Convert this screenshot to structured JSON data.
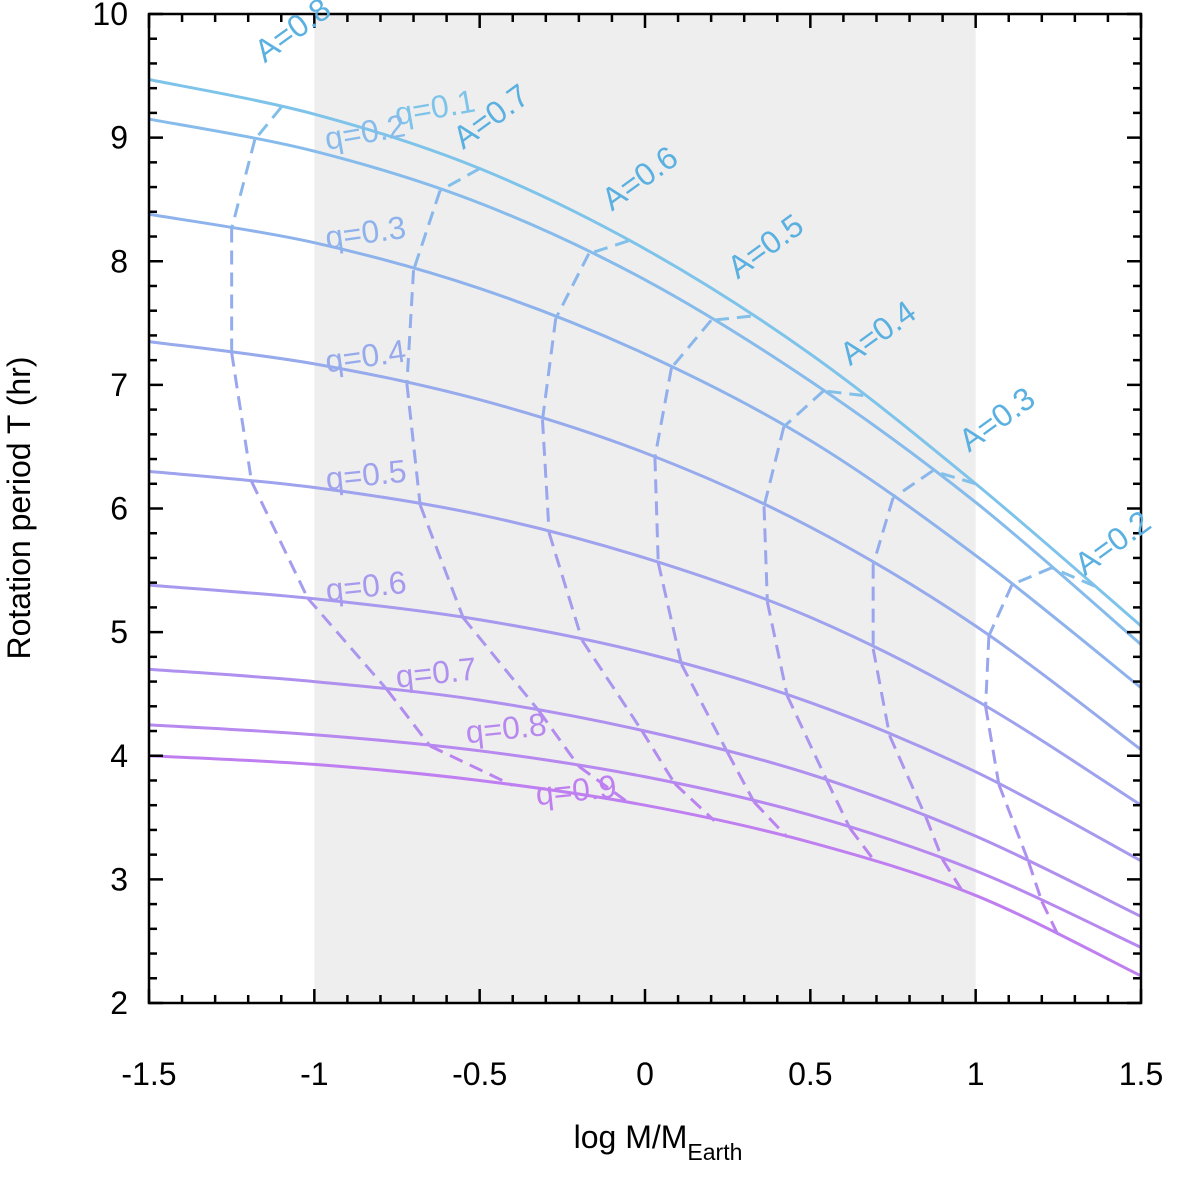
{
  "chart_data": {
    "type": "line",
    "title": "",
    "xlabel": "log M/M",
    "xlabel_subscript": "Earth",
    "ylabel": "Rotation period T (hr)",
    "xlim": [
      -1.5,
      1.5
    ],
    "ylim": [
      2,
      10
    ],
    "xticks": [
      -1.5,
      -1,
      -0.5,
      0,
      0.5,
      1,
      1.5
    ],
    "xtick_labels": [
      "-1.5",
      "-1",
      "-0.5",
      "0",
      "0.5",
      "1",
      "1.5"
    ],
    "yticks": [
      2,
      3,
      4,
      5,
      6,
      7,
      8,
      9,
      10
    ],
    "ytick_labels": [
      "2",
      "3",
      "4",
      "5",
      "6",
      "7",
      "8",
      "9",
      "10"
    ],
    "grid": false,
    "shaded_region": {
      "x": [
        -1,
        1
      ],
      "color": "#eeeeee"
    },
    "colors": {
      "q_start": "#7ec4ea",
      "q_end": "#bf7ff0",
      "A_label": "#5ab0e0"
    },
    "series_q": [
      {
        "name": "q=0.1",
        "q": 0.1,
        "x": [
          -1.5,
          -1.0,
          -0.5,
          0.0,
          0.5,
          1.0,
          1.5
        ],
        "y": [
          9.47,
          9.19,
          8.75,
          8.1,
          7.25,
          6.2,
          5.05
        ]
      },
      {
        "name": "q=0.2",
        "q": 0.2,
        "x": [
          -1.5,
          -1.0,
          -0.5,
          0.0,
          0.5,
          1.0,
          1.5
        ],
        "y": [
          9.15,
          8.89,
          8.47,
          7.85,
          7.03,
          6.05,
          4.9
        ]
      },
      {
        "name": "q=0.3",
        "q": 0.3,
        "x": [
          -1.5,
          -1.0,
          -0.5,
          0.0,
          0.5,
          1.0,
          1.5
        ],
        "y": [
          8.38,
          8.15,
          7.78,
          7.25,
          6.55,
          5.62,
          4.55
        ]
      },
      {
        "name": "q=0.4",
        "q": 0.4,
        "x": [
          -1.5,
          -1.0,
          -0.5,
          0.0,
          0.5,
          1.0,
          1.5
        ],
        "y": [
          7.35,
          7.17,
          6.88,
          6.45,
          5.85,
          5.05,
          4.05
        ]
      },
      {
        "name": "q=0.5",
        "q": 0.5,
        "x": [
          -1.5,
          -1.0,
          -0.5,
          0.0,
          0.5,
          1.0,
          1.5
        ],
        "y": [
          6.3,
          6.17,
          5.95,
          5.6,
          5.12,
          4.45,
          3.6
        ]
      },
      {
        "name": "q=0.6",
        "q": 0.6,
        "x": [
          -1.5,
          -1.0,
          -0.5,
          0.0,
          0.5,
          1.0,
          1.5
        ],
        "y": [
          5.38,
          5.27,
          5.1,
          4.83,
          4.43,
          3.87,
          3.15
        ]
      },
      {
        "name": "q=0.7",
        "q": 0.7,
        "x": [
          -1.5,
          -1.0,
          -0.5,
          0.0,
          0.5,
          1.0,
          1.5
        ],
        "y": [
          4.7,
          4.6,
          4.45,
          4.2,
          3.85,
          3.35,
          2.7
        ]
      },
      {
        "name": "q=0.8",
        "q": 0.8,
        "x": [
          -1.5,
          -1.0,
          -0.5,
          0.0,
          0.5,
          1.0,
          1.5
        ],
        "y": [
          4.25,
          4.17,
          4.04,
          3.83,
          3.52,
          3.07,
          2.45
        ]
      },
      {
        "name": "q=0.9",
        "q": 0.9,
        "x": [
          -1.5,
          -1.0,
          -0.5,
          0.0,
          0.5,
          1.0,
          1.5
        ],
        "y": [
          4.0,
          3.93,
          3.8,
          3.6,
          3.3,
          2.87,
          2.22
        ]
      }
    ],
    "series_A": [
      {
        "name": "A=0.8",
        "x": [
          -1.1,
          -1.18,
          -1.25,
          -1.25,
          -1.19,
          -1.02,
          -0.78,
          -0.65,
          -0.4
        ]
      },
      {
        "name": "A=0.7",
        "x": [
          -0.5,
          -0.62,
          -0.7,
          -0.72,
          -0.68,
          -0.55,
          -0.32,
          -0.2,
          -0.05
        ]
      },
      {
        "name": "A=0.6",
        "x": [
          -0.05,
          -0.17,
          -0.27,
          -0.31,
          -0.29,
          -0.19,
          -0.01,
          0.09,
          0.21
        ]
      },
      {
        "name": "A=0.5",
        "x": [
          0.32,
          0.2,
          0.08,
          0.03,
          0.04,
          0.11,
          0.25,
          0.33,
          0.43
        ]
      },
      {
        "name": "A=0.4",
        "x": [
          0.66,
          0.54,
          0.42,
          0.36,
          0.37,
          0.43,
          0.55,
          0.62,
          0.7
        ]
      },
      {
        "name": "A=0.3",
        "x": [
          1.0,
          0.87,
          0.75,
          0.69,
          0.69,
          0.74,
          0.85,
          0.9,
          0.96
        ]
      },
      {
        "name": "A=0.2",
        "x": [
          1.36,
          1.23,
          1.11,
          1.04,
          1.03,
          1.07,
          1.16,
          1.2,
          1.25
        ]
      }
    ],
    "q_labels": [
      {
        "text": "q=0.1",
        "x": -0.1,
        "y": 9.1
      },
      {
        "text": "q=0.2",
        "x": -0.1,
        "y": 8.9
      },
      {
        "text": "q=0.3",
        "x": -0.1,
        "y": 8.1
      },
      {
        "text": "q=0.4",
        "x": -0.1,
        "y": 7.1
      },
      {
        "text": "q=0.5",
        "x": -0.1,
        "y": 6.15
      },
      {
        "text": "q=0.6",
        "x": -0.1,
        "y": 5.25
      },
      {
        "text": "q=0.7",
        "x": -0.1,
        "y": 4.55
      },
      {
        "text": "q=0.8",
        "x": -0.1,
        "y": 4.1
      },
      {
        "text": "q=0.9",
        "x": -0.1,
        "y": 3.6
      }
    ],
    "A_labels": [
      {
        "text": "A=0.8",
        "x": -1.15,
        "y": 9.6
      },
      {
        "text": "A=0.7",
        "x": -0.55,
        "y": 8.9
      },
      {
        "text": "A=0.6",
        "x": -0.1,
        "y": 8.4
      },
      {
        "text": "A=0.5",
        "x": 0.28,
        "y": 7.85
      },
      {
        "text": "A=0.4",
        "x": 0.62,
        "y": 7.15
      },
      {
        "text": "A=0.3",
        "x": 0.98,
        "y": 6.45
      },
      {
        "text": "A=0.2",
        "x": 1.33,
        "y": 5.45
      }
    ]
  }
}
